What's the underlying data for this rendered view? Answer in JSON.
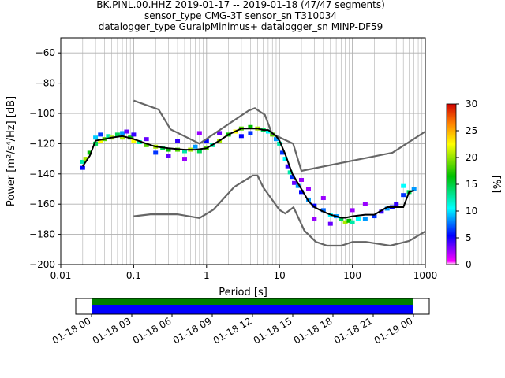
{
  "title_lines": [
    "BK.PINL.00.HHZ   2019-01-17 -- 2019-01-18  (47/47 segments)",
    "sensor_type CMG-3T sensor_sn T310034",
    "datalogger_type GuralpMinimus+ datalogger_sn MINP-DF59"
  ],
  "colors": {
    "noise_model": "#666666",
    "mode_line": "#000000",
    "grid": "#b0b0b0",
    "timeline_fill_top": "#008000",
    "timeline_fill_bottom": "#0000ff"
  },
  "chart_data": [
    {
      "type": "heatmap",
      "title": "",
      "xlabel": "Period [s]",
      "ylabel": "Power [m²/s⁴/Hz] [dB]",
      "x_scale": "log",
      "xlim": [
        0.01,
        1000
      ],
      "ylim": [
        -200,
        -50
      ],
      "grid": true,
      "x_ticks": [
        {
          "value": 0.01,
          "label": "0.01"
        },
        {
          "value": 0.1,
          "label": "0.1"
        },
        {
          "value": 1,
          "label": "1"
        },
        {
          "value": 10,
          "label": "10"
        },
        {
          "value": 100,
          "label": "100"
        },
        {
          "value": 1000,
          "label": "1000"
        }
      ],
      "y_ticks": [
        {
          "value": -60,
          "label": "−60"
        },
        {
          "value": -80,
          "label": "−80"
        },
        {
          "value": -100,
          "label": "−100"
        },
        {
          "value": -120,
          "label": "−120"
        },
        {
          "value": -140,
          "label": "−140"
        },
        {
          "value": -160,
          "label": "−160"
        },
        {
          "value": -180,
          "label": "−180"
        },
        {
          "value": -200,
          "label": "−200"
        }
      ],
      "colorbar": {
        "label": "[%]",
        "range": [
          0,
          30
        ],
        "ticks": [
          "0",
          "5",
          "10",
          "15",
          "20",
          "25",
          "30"
        ]
      },
      "mode_curve": {
        "x": [
          0.02,
          0.025,
          0.03,
          0.04,
          0.05,
          0.07,
          0.1,
          0.15,
          0.2,
          0.3,
          0.5,
          0.7,
          1,
          1.5,
          2,
          3,
          4,
          5,
          6,
          7,
          8,
          9,
          10,
          12,
          15,
          20,
          25,
          30,
          40,
          50,
          60,
          70,
          80,
          100,
          150,
          200,
          300,
          400,
          500,
          600,
          700
        ],
        "y": [
          -135,
          -128,
          -118,
          -117,
          -116,
          -115,
          -117,
          -120,
          -122,
          -123,
          -124,
          -124,
          -123,
          -118,
          -114,
          -110,
          -110,
          -110,
          -111,
          -111,
          -113,
          -115,
          -118,
          -127,
          -140,
          -150,
          -158,
          -162,
          -165,
          -167,
          -168,
          -169,
          -169,
          -168,
          -167,
          -167,
          -162,
          -162,
          -162,
          -152,
          -151
        ]
      },
      "heatmap_cells": [
        {
          "x": 0.02,
          "y": -136,
          "pct": 5
        },
        {
          "x": 0.02,
          "y": -132,
          "pct": 12
        },
        {
          "x": 0.022,
          "y": -130,
          "pct": 20
        },
        {
          "x": 0.025,
          "y": -126,
          "pct": 16
        },
        {
          "x": 0.03,
          "y": -120,
          "pct": 14
        },
        {
          "x": 0.03,
          "y": -116,
          "pct": 9
        },
        {
          "x": 0.035,
          "y": -118,
          "pct": 22
        },
        {
          "x": 0.035,
          "y": -114,
          "pct": 6
        },
        {
          "x": 0.04,
          "y": -117,
          "pct": 18
        },
        {
          "x": 0.045,
          "y": -115,
          "pct": 12
        },
        {
          "x": 0.05,
          "y": -116,
          "pct": 20
        },
        {
          "x": 0.06,
          "y": -114,
          "pct": 14
        },
        {
          "x": 0.07,
          "y": -113,
          "pct": 8
        },
        {
          "x": 0.07,
          "y": -116,
          "pct": 20
        },
        {
          "x": 0.08,
          "y": -112,
          "pct": 3
        },
        {
          "x": 0.09,
          "y": -116,
          "pct": 16
        },
        {
          "x": 0.1,
          "y": -118,
          "pct": 22
        },
        {
          "x": 0.1,
          "y": -114,
          "pct": 4
        },
        {
          "x": 0.12,
          "y": -119,
          "pct": 12
        },
        {
          "x": 0.15,
          "y": -121,
          "pct": 18
        },
        {
          "x": 0.15,
          "y": -117,
          "pct": 3
        },
        {
          "x": 0.2,
          "y": -122,
          "pct": 20
        },
        {
          "x": 0.2,
          "y": -126,
          "pct": 6
        },
        {
          "x": 0.25,
          "y": -123,
          "pct": 14
        },
        {
          "x": 0.3,
          "y": -124,
          "pct": 16
        },
        {
          "x": 0.3,
          "y": -128,
          "pct": 3
        },
        {
          "x": 0.4,
          "y": -124,
          "pct": 18
        },
        {
          "x": 0.4,
          "y": -118,
          "pct": 4
        },
        {
          "x": 0.5,
          "y": -125,
          "pct": 12
        },
        {
          "x": 0.5,
          "y": -130,
          "pct": 2
        },
        {
          "x": 0.6,
          "y": -124,
          "pct": 20
        },
        {
          "x": 0.7,
          "y": -122,
          "pct": 8
        },
        {
          "x": 0.8,
          "y": -125,
          "pct": 14
        },
        {
          "x": 0.8,
          "y": -113,
          "pct": 2
        },
        {
          "x": 1,
          "y": -123,
          "pct": 18
        },
        {
          "x": 1,
          "y": -118,
          "pct": 5
        },
        {
          "x": 1.2,
          "y": -121,
          "pct": 12
        },
        {
          "x": 1.5,
          "y": -118,
          "pct": 20
        },
        {
          "x": 1.5,
          "y": -113,
          "pct": 3
        },
        {
          "x": 2,
          "y": -114,
          "pct": 16
        },
        {
          "x": 2.5,
          "y": -112,
          "pct": 22
        },
        {
          "x": 3,
          "y": -110,
          "pct": 18
        },
        {
          "x": 3,
          "y": -115,
          "pct": 5
        },
        {
          "x": 4,
          "y": -109,
          "pct": 16
        },
        {
          "x": 4,
          "y": -113,
          "pct": 6
        },
        {
          "x": 5,
          "y": -110,
          "pct": 20
        },
        {
          "x": 6,
          "y": -111,
          "pct": 14
        },
        {
          "x": 7,
          "y": -112,
          "pct": 10
        },
        {
          "x": 8,
          "y": -114,
          "pct": 18
        },
        {
          "x": 9,
          "y": -117,
          "pct": 8
        },
        {
          "x": 10,
          "y": -120,
          "pct": 12
        },
        {
          "x": 11,
          "y": -126,
          "pct": 6
        },
        {
          "x": 12,
          "y": -130,
          "pct": 10
        },
        {
          "x": 13,
          "y": -135,
          "pct": 4
        },
        {
          "x": 14,
          "y": -139,
          "pct": 12
        },
        {
          "x": 15,
          "y": -142,
          "pct": 6
        },
        {
          "x": 16,
          "y": -146,
          "pct": 3
        },
        {
          "x": 18,
          "y": -148,
          "pct": 8
        },
        {
          "x": 20,
          "y": -152,
          "pct": 5
        },
        {
          "x": 20,
          "y": -144,
          "pct": 2
        },
        {
          "x": 25,
          "y": -157,
          "pct": 8
        },
        {
          "x": 25,
          "y": -150,
          "pct": 2
        },
        {
          "x": 30,
          "y": -161,
          "pct": 5
        },
        {
          "x": 30,
          "y": -170,
          "pct": 2
        },
        {
          "x": 40,
          "y": -164,
          "pct": 7
        },
        {
          "x": 40,
          "y": -156,
          "pct": 2
        },
        {
          "x": 50,
          "y": -167,
          "pct": 10
        },
        {
          "x": 50,
          "y": -173,
          "pct": 3
        },
        {
          "x": 60,
          "y": -168,
          "pct": 8
        },
        {
          "x": 70,
          "y": -170,
          "pct": 14
        },
        {
          "x": 80,
          "y": -172,
          "pct": 20
        },
        {
          "x": 90,
          "y": -171,
          "pct": 16
        },
        {
          "x": 100,
          "y": -172,
          "pct": 12
        },
        {
          "x": 100,
          "y": -164,
          "pct": 2
        },
        {
          "x": 120,
          "y": -170,
          "pct": 10
        },
        {
          "x": 150,
          "y": -170,
          "pct": 8
        },
        {
          "x": 150,
          "y": -160,
          "pct": 2
        },
        {
          "x": 200,
          "y": -168,
          "pct": 6
        },
        {
          "x": 250,
          "y": -165,
          "pct": 4
        },
        {
          "x": 300,
          "y": -163,
          "pct": 8
        },
        {
          "x": 350,
          "y": -162,
          "pct": 5
        },
        {
          "x": 400,
          "y": -160,
          "pct": 4
        },
        {
          "x": 500,
          "y": -154,
          "pct": 6
        },
        {
          "x": 500,
          "y": -148,
          "pct": 10
        },
        {
          "x": 600,
          "y": -152,
          "pct": 14
        },
        {
          "x": 700,
          "y": -150,
          "pct": 8
        }
      ],
      "new_high_noise_model": {
        "x": [
          0.1,
          0.22,
          0.32,
          0.8,
          3.8,
          4.6,
          6.3,
          7.9,
          15.4,
          20,
          354.8,
          1000
        ],
        "y": [
          -91.5,
          -97.4,
          -110.5,
          -120,
          -98,
          -96.5,
          -101,
          -113.5,
          -120,
          -138,
          -126,
          -112
        ]
      },
      "new_low_noise_model": {
        "x": [
          0.1,
          0.17,
          0.4,
          0.8,
          1.24,
          2.4,
          4.3,
          5,
          6,
          10,
          12,
          15.6,
          21.9,
          31.6,
          45,
          70,
          101,
          154,
          328,
          600,
          1000
        ],
        "y": [
          -168,
          -166.7,
          -166.7,
          -169.2,
          -163.7,
          -148.6,
          -141.1,
          -141.1,
          -149,
          -163.8,
          -166.2,
          -162.1,
          -177.5,
          -185,
          -187.5,
          -187.5,
          -185,
          -185,
          -187.5,
          -184.4,
          -178
        ]
      }
    },
    {
      "type": "area",
      "title": "",
      "xlim": [
        "01-18 00",
        "01-19 00"
      ],
      "x_tick_labels": [
        "01-18 00",
        "01-18 03",
        "01-18 06",
        "01-18 09",
        "01-18 12",
        "01-18 15",
        "01-18 18",
        "01-18 21",
        "01-19 00"
      ],
      "data_coverage": {
        "start_fraction": 0.0,
        "end_fraction": 1.0
      }
    }
  ]
}
